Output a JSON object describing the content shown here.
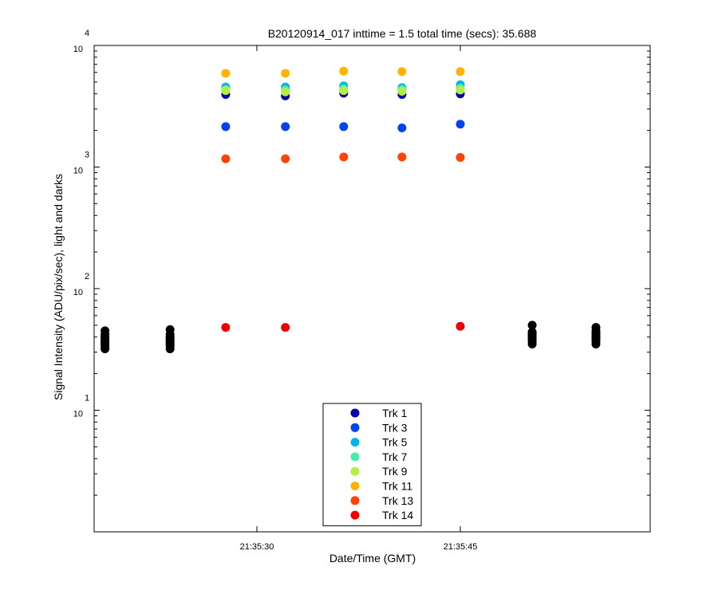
{
  "chart_data": {
    "type": "scatter",
    "title": "B20120914_017 inttime = 1.5 total time (secs): 35.688",
    "xlabel": "Date/Time (GMT)",
    "ylabel": "Signal Intensity (ADU/pix/sec), light and darks",
    "yscale": "log",
    "ylim": [
      1,
      10000
    ],
    "xlim": [
      "21:35:18",
      "21:35:59"
    ],
    "x_ticks": [
      "21:35:30",
      "21:35:45"
    ],
    "y_ticks": [
      {
        "base": "10",
        "exp": "1"
      },
      {
        "base": "10",
        "exp": "2"
      },
      {
        "base": "10",
        "exp": "3"
      },
      {
        "base": "10",
        "exp": "4"
      }
    ],
    "grid": false,
    "legend_position": "bottom-center",
    "light_x": [
      "21:35:27.7",
      "21:35:32.1",
      "21:35:36.4",
      "21:35:40.7",
      "21:35:45.0"
    ],
    "series": [
      {
        "name": "Trk 1",
        "color": "#0000aa",
        "values": [
          3950,
          3850,
          4050,
          3950,
          4000
        ]
      },
      {
        "name": "Trk 3",
        "color": "#0044ee",
        "values": [
          2150,
          2150,
          2150,
          2100,
          2250
        ]
      },
      {
        "name": "Trk 5",
        "color": "#00b4ee",
        "values": [
          4550,
          4550,
          4650,
          4500,
          4750
        ]
      },
      {
        "name": "Trk 7",
        "color": "#44eeaa",
        "values": [
          4350,
          4300,
          4400,
          4350,
          4450
        ]
      },
      {
        "name": "Trk 9",
        "color": "#b4ee44",
        "values": [
          4250,
          4150,
          4250,
          4200,
          4300
        ]
      },
      {
        "name": "Trk 11",
        "color": "#ffb400",
        "values": [
          5900,
          5900,
          6150,
          6100,
          6100
        ]
      },
      {
        "name": "Trk 13",
        "color": "#ff4400",
        "values": [
          1170,
          1170,
          1210,
          1210,
          1200
        ]
      },
      {
        "name": "Trk 14",
        "color": "#ee0000",
        "values": [
          48,
          48,
          null,
          null,
          49
        ]
      }
    ],
    "darks": {
      "color": "#000000",
      "groups": [
        {
          "x": "21:35:18.8",
          "values": [
            32,
            34,
            35,
            36,
            37,
            38,
            39,
            40,
            42,
            45
          ]
        },
        {
          "x": "21:35:23.6",
          "values": [
            32,
            34,
            35,
            36,
            37,
            38,
            39,
            40,
            42,
            46
          ]
        },
        {
          "x": "21:35:50.3",
          "values": [
            35,
            37,
            38,
            39,
            40,
            41,
            42,
            43,
            44,
            50
          ]
        },
        {
          "x": "21:35:55.0",
          "values": [
            35,
            37,
            38,
            39,
            40,
            41,
            42,
            43,
            45,
            48
          ]
        }
      ]
    }
  }
}
